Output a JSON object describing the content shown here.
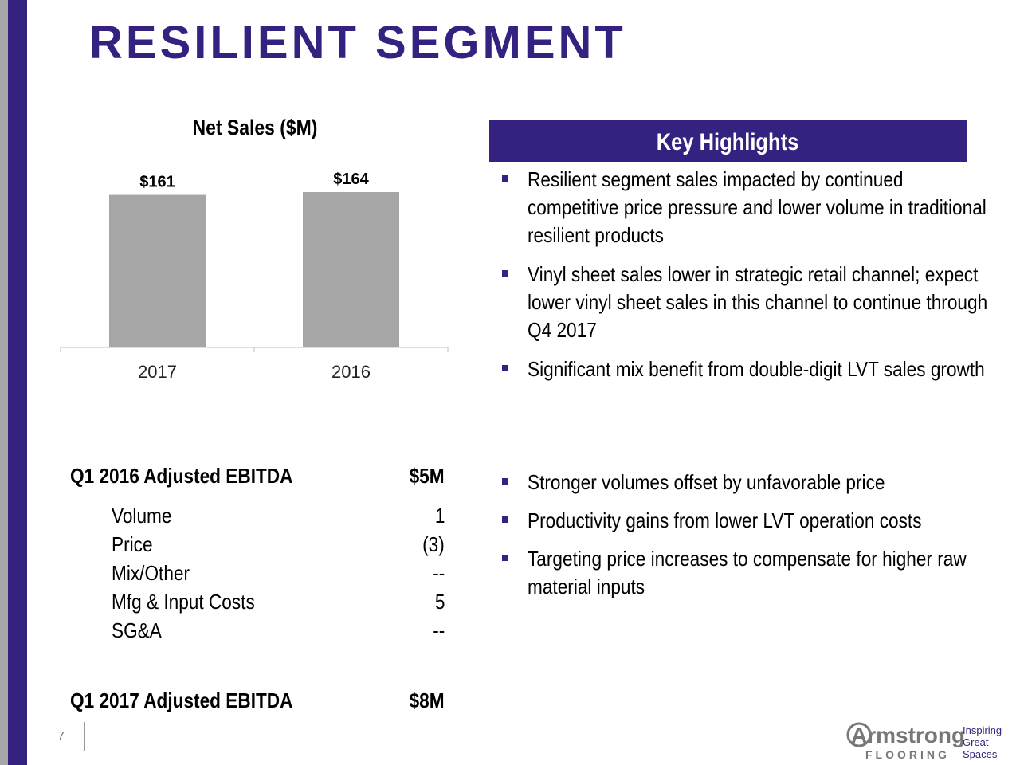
{
  "title": "RESILIENT SEGMENT",
  "chart_data": {
    "type": "bar",
    "title": "Net Sales ($M)",
    "categories": [
      "2017",
      "2016"
    ],
    "values": [
      161,
      164
    ],
    "data_labels": [
      "$161",
      "$164"
    ],
    "bar_color": "#a6a6a6",
    "grid": false
  },
  "key_highlights": {
    "header": "Key Highlights",
    "bullets": [
      "Resilient segment sales impacted by continued competitive price pressure and lower volume in traditional resilient products",
      "Vinyl sheet sales lower in strategic retail channel; expect lower vinyl sheet sales in this channel to continue through Q4 2017",
      "Significant mix benefit from double-digit LVT sales growth"
    ]
  },
  "ebitda": {
    "start_label": "Q1 2016 Adjusted EBITDA",
    "start_value": "$5M",
    "items": [
      {
        "label": "Volume",
        "value": "1"
      },
      {
        "label": "Price",
        "value": "(3)"
      },
      {
        "label": "Mix/Other",
        "value": "--"
      },
      {
        "label": "Mfg & Input Costs",
        "value": "5"
      },
      {
        "label": "SG&A",
        "value": "--"
      }
    ],
    "end_label": "Q1 2017 Adjusted EBITDA",
    "end_value": "$8M"
  },
  "ebitda_bullets": [
    "Stronger volumes offset by unfavorable price",
    "Productivity gains from lower LVT operation costs",
    "Targeting price increases to compensate for higher raw material inputs"
  ],
  "footer": {
    "page_number": "7",
    "logo_brand": "Armstrong",
    "logo_sub": "FLOORING",
    "logo_tagline": [
      "Inspiring",
      "Great",
      "Spaces"
    ]
  },
  "colors": {
    "brand_purple": "#35217f",
    "sidebar_gray": "#a6a6a6"
  }
}
